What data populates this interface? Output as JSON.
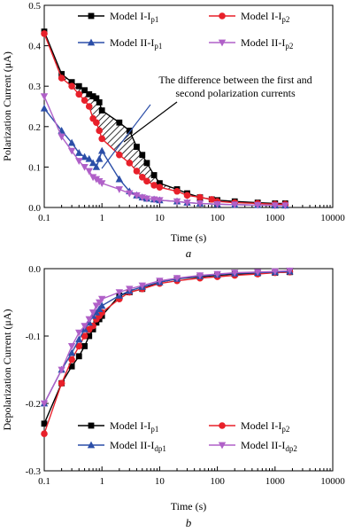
{
  "chart_data": [
    {
      "type": "line",
      "panel_label": "a",
      "xlabel": "Time (s)",
      "ylabel": "Polarization Current (μA)",
      "x_scale": "log",
      "xlim": [
        0.1,
        10000
      ],
      "ylim": [
        0,
        0.5
      ],
      "x_ticks": [
        "0.1",
        "1",
        "10",
        "100",
        "1000",
        "10000"
      ],
      "y_ticks": [
        "0.0",
        "0.1",
        "0.2",
        "0.3",
        "0.4",
        "0.5"
      ],
      "annotation": {
        "line1": "The difference between the first and",
        "line2": "second polarization currents"
      },
      "legend": [
        {
          "prefix": "Model I-I",
          "sub": "p1",
          "color": "#000000",
          "marker": "square"
        },
        {
          "prefix": "Model I-I",
          "sub": "p2",
          "color": "#e8202a",
          "marker": "circle"
        },
        {
          "prefix": "Model II-I",
          "sub": "p1",
          "color": "#2b4ea8",
          "marker": "triangle-up"
        },
        {
          "prefix": "Model II-I",
          "sub": "p2",
          "color": "#b060c8",
          "marker": "triangle-down"
        }
      ],
      "series": [
        {
          "color": "#000000",
          "marker": "square",
          "x": [
            0.1,
            0.2,
            0.3,
            0.4,
            0.5,
            0.6,
            0.7,
            0.8,
            0.9,
            1,
            2,
            3,
            4,
            5,
            6,
            8,
            10,
            20,
            30,
            50,
            80,
            100,
            200,
            500,
            1000,
            1500
          ],
          "y": [
            0.435,
            0.33,
            0.31,
            0.3,
            0.29,
            0.28,
            0.275,
            0.27,
            0.26,
            0.24,
            0.21,
            0.19,
            0.15,
            0.13,
            0.11,
            0.08,
            0.06,
            0.045,
            0.035,
            0.025,
            0.02,
            0.018,
            0.015,
            0.012,
            0.01,
            0.01
          ]
        },
        {
          "color": "#e8202a",
          "marker": "circle",
          "x": [
            0.1,
            0.2,
            0.3,
            0.4,
            0.5,
            0.6,
            0.7,
            0.8,
            0.9,
            1,
            2,
            3,
            4,
            5,
            6,
            8,
            10,
            20,
            30,
            50,
            80,
            100,
            200,
            500,
            1000,
            1500
          ],
          "y": [
            0.43,
            0.32,
            0.3,
            0.28,
            0.265,
            0.25,
            0.22,
            0.21,
            0.19,
            0.17,
            0.13,
            0.11,
            0.09,
            0.075,
            0.065,
            0.055,
            0.05,
            0.04,
            0.03,
            0.025,
            0.02,
            0.015,
            0.012,
            0.01,
            0.008,
            0.008
          ]
        },
        {
          "color": "#2b4ea8",
          "marker": "triangle-up",
          "x": [
            0.1,
            0.2,
            0.3,
            0.4,
            0.5,
            0.6,
            0.7,
            0.8,
            0.9,
            1,
            2,
            3,
            4,
            5,
            6,
            8,
            10,
            20,
            30,
            50,
            100,
            200,
            500,
            1000,
            1500
          ],
          "y": [
            0.245,
            0.19,
            0.16,
            0.135,
            0.125,
            0.12,
            0.11,
            0.1,
            0.12,
            0.14,
            0.07,
            0.04,
            0.03,
            0.025,
            0.022,
            0.02,
            0.018,
            0.015,
            0.012,
            0.01,
            0.008,
            0.007,
            0.006,
            0.005,
            0.005
          ]
        },
        {
          "color": "#b060c8",
          "marker": "triangle-down",
          "x": [
            0.1,
            0.2,
            0.3,
            0.4,
            0.5,
            0.6,
            0.7,
            0.8,
            0.9,
            1,
            2,
            3,
            4,
            5,
            6,
            8,
            10,
            20,
            30,
            50,
            100,
            200,
            500,
            1000,
            1500
          ],
          "y": [
            0.275,
            0.175,
            0.14,
            0.115,
            0.1,
            0.09,
            0.075,
            0.07,
            0.065,
            0.06,
            0.045,
            0.035,
            0.03,
            0.025,
            0.022,
            0.02,
            0.018,
            0.015,
            0.012,
            0.01,
            0.008,
            0.007,
            0.006,
            0.005,
            0.005
          ]
        }
      ]
    },
    {
      "type": "line",
      "panel_label": "b",
      "xlabel": "Time (s)",
      "ylabel": "Depolarization Current (μA)",
      "x_scale": "log",
      "xlim": [
        0.1,
        10000
      ],
      "ylim": [
        -0.3,
        0
      ],
      "x_ticks": [
        "0.1",
        "1",
        "10",
        "100",
        "1000",
        "10000"
      ],
      "y_ticks": [
        "-0.3",
        "-0.2",
        "-0.1",
        "0.0"
      ],
      "legend": [
        {
          "prefix": "Model I-I",
          "sub": "p1",
          "color": "#000000",
          "marker": "square"
        },
        {
          "prefix": "Model I-I",
          "sub": "p2",
          "color": "#e8202a",
          "marker": "circle"
        },
        {
          "prefix": "Model II-I",
          "sub": "dp1",
          "color": "#2b4ea8",
          "marker": "triangle-up"
        },
        {
          "prefix": "Model II-I",
          "sub": "dp2",
          "color": "#b060c8",
          "marker": "triangle-down"
        }
      ],
      "series": [
        {
          "color": "#000000",
          "marker": "square",
          "x": [
            0.1,
            0.2,
            0.3,
            0.4,
            0.5,
            0.6,
            0.7,
            0.8,
            0.9,
            1,
            2,
            3,
            5,
            10,
            20,
            50,
            100,
            200,
            500,
            1000,
            1800
          ],
          "y": [
            -0.23,
            -0.17,
            -0.145,
            -0.13,
            -0.115,
            -0.1,
            -0.09,
            -0.08,
            -0.075,
            -0.07,
            -0.04,
            -0.035,
            -0.03,
            -0.02,
            -0.015,
            -0.012,
            -0.01,
            -0.008,
            -0.007,
            -0.006,
            -0.005
          ]
        },
        {
          "color": "#e8202a",
          "marker": "circle",
          "x": [
            0.1,
            0.2,
            0.3,
            0.4,
            0.5,
            0.6,
            0.7,
            0.8,
            0.9,
            1,
            2,
            3,
            5,
            10,
            20,
            50,
            100,
            200,
            500,
            1000,
            1800
          ],
          "y": [
            -0.245,
            -0.17,
            -0.135,
            -0.115,
            -0.1,
            -0.09,
            -0.085,
            -0.075,
            -0.07,
            -0.065,
            -0.045,
            -0.035,
            -0.03,
            -0.022,
            -0.018,
            -0.014,
            -0.012,
            -0.01,
            -0.008,
            -0.006,
            -0.005
          ]
        },
        {
          "color": "#2b4ea8",
          "marker": "triangle-up",
          "x": [
            0.1,
            0.2,
            0.3,
            0.4,
            0.5,
            0.6,
            0.7,
            0.8,
            0.9,
            1,
            2,
            3,
            5,
            10,
            20,
            50,
            100,
            200,
            500,
            1000,
            1800
          ],
          "y": [
            -0.2,
            -0.15,
            -0.125,
            -0.105,
            -0.09,
            -0.08,
            -0.07,
            -0.065,
            -0.06,
            -0.055,
            -0.04,
            -0.033,
            -0.027,
            -0.02,
            -0.015,
            -0.011,
            -0.009,
            -0.007,
            -0.006,
            -0.005,
            -0.004
          ]
        },
        {
          "color": "#b060c8",
          "marker": "triangle-down",
          "x": [
            0.1,
            0.2,
            0.3,
            0.4,
            0.5,
            0.6,
            0.7,
            0.8,
            0.9,
            1,
            2,
            3,
            5,
            10,
            20,
            50,
            100,
            200,
            500,
            1000,
            1800
          ],
          "y": [
            -0.2,
            -0.15,
            -0.115,
            -0.095,
            -0.085,
            -0.075,
            -0.065,
            -0.055,
            -0.05,
            -0.045,
            -0.035,
            -0.03,
            -0.025,
            -0.018,
            -0.014,
            -0.01,
            -0.008,
            -0.006,
            -0.005,
            -0.004,
            -0.003
          ]
        }
      ]
    }
  ]
}
